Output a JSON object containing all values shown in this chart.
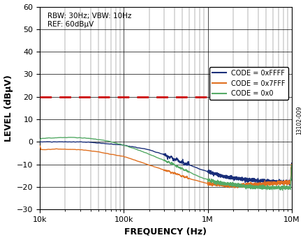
{
  "title": "",
  "xlabel": "FREQUENCY (Hz)",
  "ylabel": "LEVEL (dBμV)",
  "annotation": "RBW: 30Hz; VBW: 10Hz\nREF: 60dBμV",
  "xlim": [
    10000,
    10000000
  ],
  "ylim": [
    -30,
    60
  ],
  "yticks": [
    -30,
    -20,
    -10,
    0,
    10,
    20,
    30,
    40,
    50,
    60
  ],
  "dashed_line_y": 20,
  "dashed_line_color": "#cc0000",
  "legend_entries": [
    "CODE = 0xFFFF",
    "CODE = 0x7FFF",
    "CODE = 0x0"
  ],
  "line_colors": [
    "#1a2f7a",
    "#e07020",
    "#55aa66"
  ],
  "watermark": "13102-009",
  "background_color": "#ffffff"
}
